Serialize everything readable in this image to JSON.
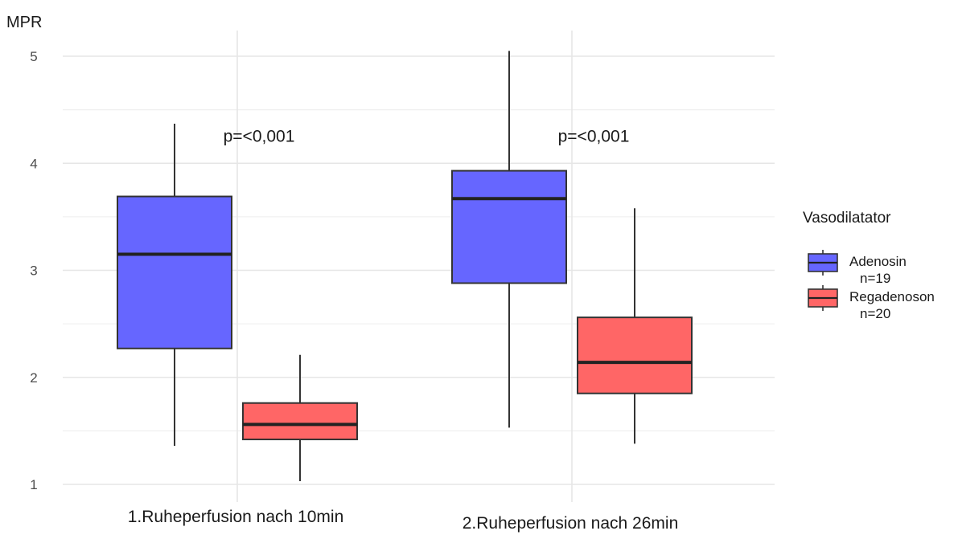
{
  "chart_data": {
    "type": "boxplot",
    "ylabel": "MPR",
    "ylim": [
      0.95,
      5.25
    ],
    "yticks": [
      1,
      2,
      3,
      4,
      5
    ],
    "grid": true,
    "categories": [
      "1.Ruheperfusion nach 10min",
      "2.Ruheperfusion nach 26min"
    ],
    "legend": {
      "title": "Vasodilatator",
      "placement": "right",
      "entries": [
        {
          "label": "Adenosin",
          "sublabel": "n=19",
          "color": "#6666ff"
        },
        {
          "label": "Regadenoson",
          "sublabel": "n=20",
          "color": "#ff6666"
        }
      ]
    },
    "series": [
      {
        "name": "Adenosin",
        "color": "#6666ff",
        "boxes": [
          {
            "whisker_low": 1.36,
            "q1": 2.27,
            "median": 3.15,
            "q3": 3.69,
            "whisker_high": 4.37
          },
          {
            "whisker_low": 1.53,
            "q1": 2.88,
            "median": 3.67,
            "q3": 3.93,
            "whisker_high": 5.05
          }
        ]
      },
      {
        "name": "Regadenoson",
        "color": "#ff6666",
        "boxes": [
          {
            "whisker_low": 1.03,
            "q1": 1.42,
            "median": 1.56,
            "q3": 1.76,
            "whisker_high": 2.21
          },
          {
            "whisker_low": 1.38,
            "q1": 1.85,
            "median": 2.14,
            "q3": 2.56,
            "whisker_high": 3.58
          }
        ]
      }
    ],
    "annotations": [
      {
        "text": "p=<0,001",
        "category": 0,
        "y": 4.2
      },
      {
        "text": "p=<0,001",
        "category": 1,
        "y": 4.2
      }
    ]
  }
}
